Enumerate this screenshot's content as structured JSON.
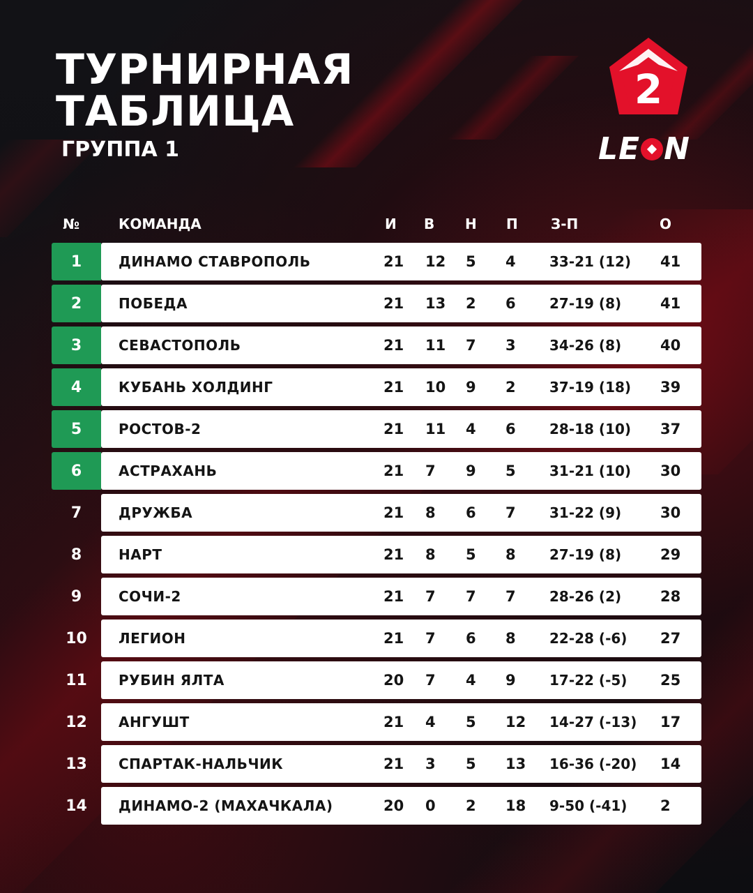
{
  "header": {
    "title_line1": "ТУРНИРНАЯ",
    "title_line2": "ТАБЛИЦА",
    "subtitle": "ГРУППА 1"
  },
  "logo": {
    "badge_number": "2",
    "wordmark_left": "LE",
    "wordmark_right": "N",
    "icon": "league-pentagon-logo",
    "accent": "#e3112a"
  },
  "colors": {
    "qualification": "#1f9a55",
    "accent_red": "#b00c18"
  },
  "columns": {
    "pos": "№",
    "team": "КОМАНДА",
    "games": "И",
    "wins": "В",
    "draws": "Н",
    "losses": "П",
    "goals": "З-П",
    "points": "О"
  },
  "standings": [
    {
      "pos": "1",
      "team": "ДИНАМО СТАВРОПОЛЬ",
      "games": "21",
      "wins": "12",
      "draws": "5",
      "losses": "4",
      "goals": "33-21 (12)",
      "points": "41",
      "qualified": true
    },
    {
      "pos": "2",
      "team": "ПОБЕДА",
      "games": "21",
      "wins": "13",
      "draws": "2",
      "losses": "6",
      "goals": "27-19 (8)",
      "points": "41",
      "qualified": true
    },
    {
      "pos": "3",
      "team": "СЕВАСТОПОЛЬ",
      "games": "21",
      "wins": "11",
      "draws": "7",
      "losses": "3",
      "goals": "34-26 (8)",
      "points": "40",
      "qualified": true
    },
    {
      "pos": "4",
      "team": "КУБАНЬ ХОЛДИНГ",
      "games": "21",
      "wins": "10",
      "draws": "9",
      "losses": "2",
      "goals": "37-19 (18)",
      "points": "39",
      "qualified": true
    },
    {
      "pos": "5",
      "team": "РОСТОВ-2",
      "games": "21",
      "wins": "11",
      "draws": "4",
      "losses": "6",
      "goals": "28-18 (10)",
      "points": "37",
      "qualified": true
    },
    {
      "pos": "6",
      "team": "АСТРАХАНЬ",
      "games": "21",
      "wins": "7",
      "draws": "9",
      "losses": "5",
      "goals": "31-21 (10)",
      "points": "30",
      "qualified": true
    },
    {
      "pos": "7",
      "team": "ДРУЖБА",
      "games": "21",
      "wins": "8",
      "draws": "6",
      "losses": "7",
      "goals": "31-22 (9)",
      "points": "30",
      "qualified": false
    },
    {
      "pos": "8",
      "team": "НАРТ",
      "games": "21",
      "wins": "8",
      "draws": "5",
      "losses": "8",
      "goals": "27-19 (8)",
      "points": "29",
      "qualified": false
    },
    {
      "pos": "9",
      "team": "СОЧИ-2",
      "games": "21",
      "wins": "7",
      "draws": "7",
      "losses": "7",
      "goals": "28-26 (2)",
      "points": "28",
      "qualified": false
    },
    {
      "pos": "10",
      "team": "ЛЕГИОН",
      "games": "21",
      "wins": "7",
      "draws": "6",
      "losses": "8",
      "goals": "22-28 (-6)",
      "points": "27",
      "qualified": false
    },
    {
      "pos": "11",
      "team": "РУБИН ЯЛТА",
      "games": "20",
      "wins": "7",
      "draws": "4",
      "losses": "9",
      "goals": "17-22 (-5)",
      "points": "25",
      "qualified": false
    },
    {
      "pos": "12",
      "team": "АНГУШТ",
      "games": "21",
      "wins": "4",
      "draws": "5",
      "losses": "12",
      "goals": "14-27 (-13)",
      "points": "17",
      "qualified": false
    },
    {
      "pos": "13",
      "team": "СПАРТАК-НАЛЬЧИК",
      "games": "21",
      "wins": "3",
      "draws": "5",
      "losses": "13",
      "goals": "16-36 (-20)",
      "points": "14",
      "qualified": false
    },
    {
      "pos": "14",
      "team": "ДИНАМО-2 (МАХАЧКАЛА)",
      "games": "20",
      "wins": "0",
      "draws": "2",
      "losses": "18",
      "goals": "9-50 (-41)",
      "points": "2",
      "qualified": false
    }
  ]
}
